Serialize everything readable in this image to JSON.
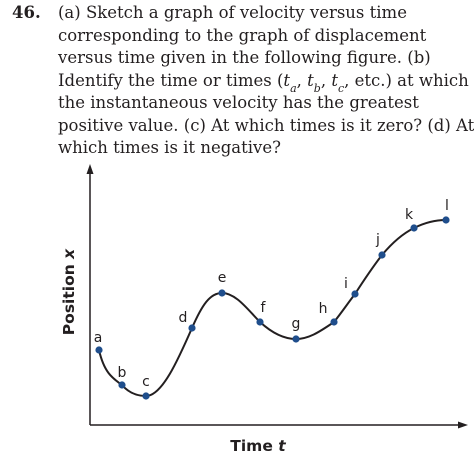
{
  "problem": {
    "number": "46.",
    "line1": "(a) Sketch a graph of velocity versus time",
    "line2": "corresponding to the graph of displacement",
    "line3": "versus time given in the following figure. (b)",
    "line4_pre": "Identify the time or times (",
    "t_symbol": "t",
    "sub_a": "a",
    "sub_b": "b",
    "sub_c": "c",
    "comma": ", ",
    "line4_post": ", etc.) at which",
    "line5": "the instantaneous velocity has the greatest",
    "line6": "positive value. (c) At which times is it zero? (d) At",
    "line7": "which times is it negative?"
  },
  "figure": {
    "y_axis_label": "Position",
    "y_axis_symbol": "x",
    "x_axis_label": "Time",
    "x_axis_symbol": "t",
    "curve_color": "#231f20",
    "point_color": "#1f4e8c",
    "points": [
      {
        "label": "a"
      },
      {
        "label": "b"
      },
      {
        "label": "c"
      },
      {
        "label": "d"
      },
      {
        "label": "e"
      },
      {
        "label": "f"
      },
      {
        "label": "g"
      },
      {
        "label": "h"
      },
      {
        "label": "i"
      },
      {
        "label": "j"
      },
      {
        "label": "k"
      },
      {
        "label": "l"
      }
    ]
  }
}
